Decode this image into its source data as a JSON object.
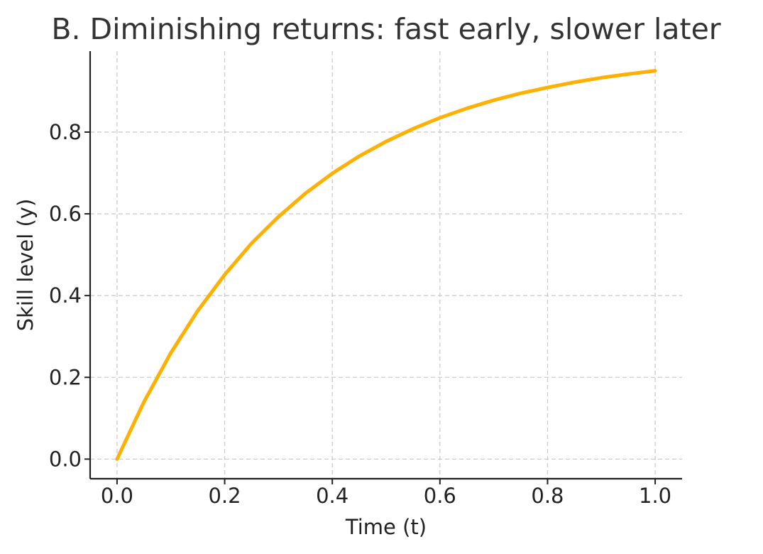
{
  "chart_data": {
    "type": "line",
    "title": "B. Diminishing returns: fast early, slower later",
    "xlabel": "Time (t)",
    "ylabel": "Skill level (y)",
    "xlim": [
      -0.05,
      1.05
    ],
    "ylim": [
      -0.048,
      0.998
    ],
    "xticks": [
      0.0,
      0.2,
      0.4,
      0.6,
      0.8,
      1.0
    ],
    "xtick_labels": [
      "0.0",
      "0.2",
      "0.4",
      "0.6",
      "0.8",
      "1.0"
    ],
    "yticks": [
      0.0,
      0.2,
      0.4,
      0.6,
      0.8
    ],
    "ytick_labels": [
      "0.0",
      "0.2",
      "0.4",
      "0.6",
      "0.8"
    ],
    "grid": true,
    "legend": false,
    "series": [
      {
        "color": "#FFB000",
        "x": [
          0.0,
          0.05,
          0.1,
          0.15,
          0.2,
          0.25,
          0.3,
          0.35,
          0.4,
          0.45,
          0.5,
          0.55,
          0.6,
          0.65,
          0.7,
          0.75,
          0.8,
          0.85,
          0.9,
          0.95,
          1.0
        ],
        "y": [
          0.0,
          0.14,
          0.26,
          0.363,
          0.451,
          0.528,
          0.593,
          0.65,
          0.699,
          0.741,
          0.777,
          0.808,
          0.835,
          0.858,
          0.878,
          0.895,
          0.909,
          0.922,
          0.933,
          0.942,
          0.95
        ]
      }
    ]
  }
}
